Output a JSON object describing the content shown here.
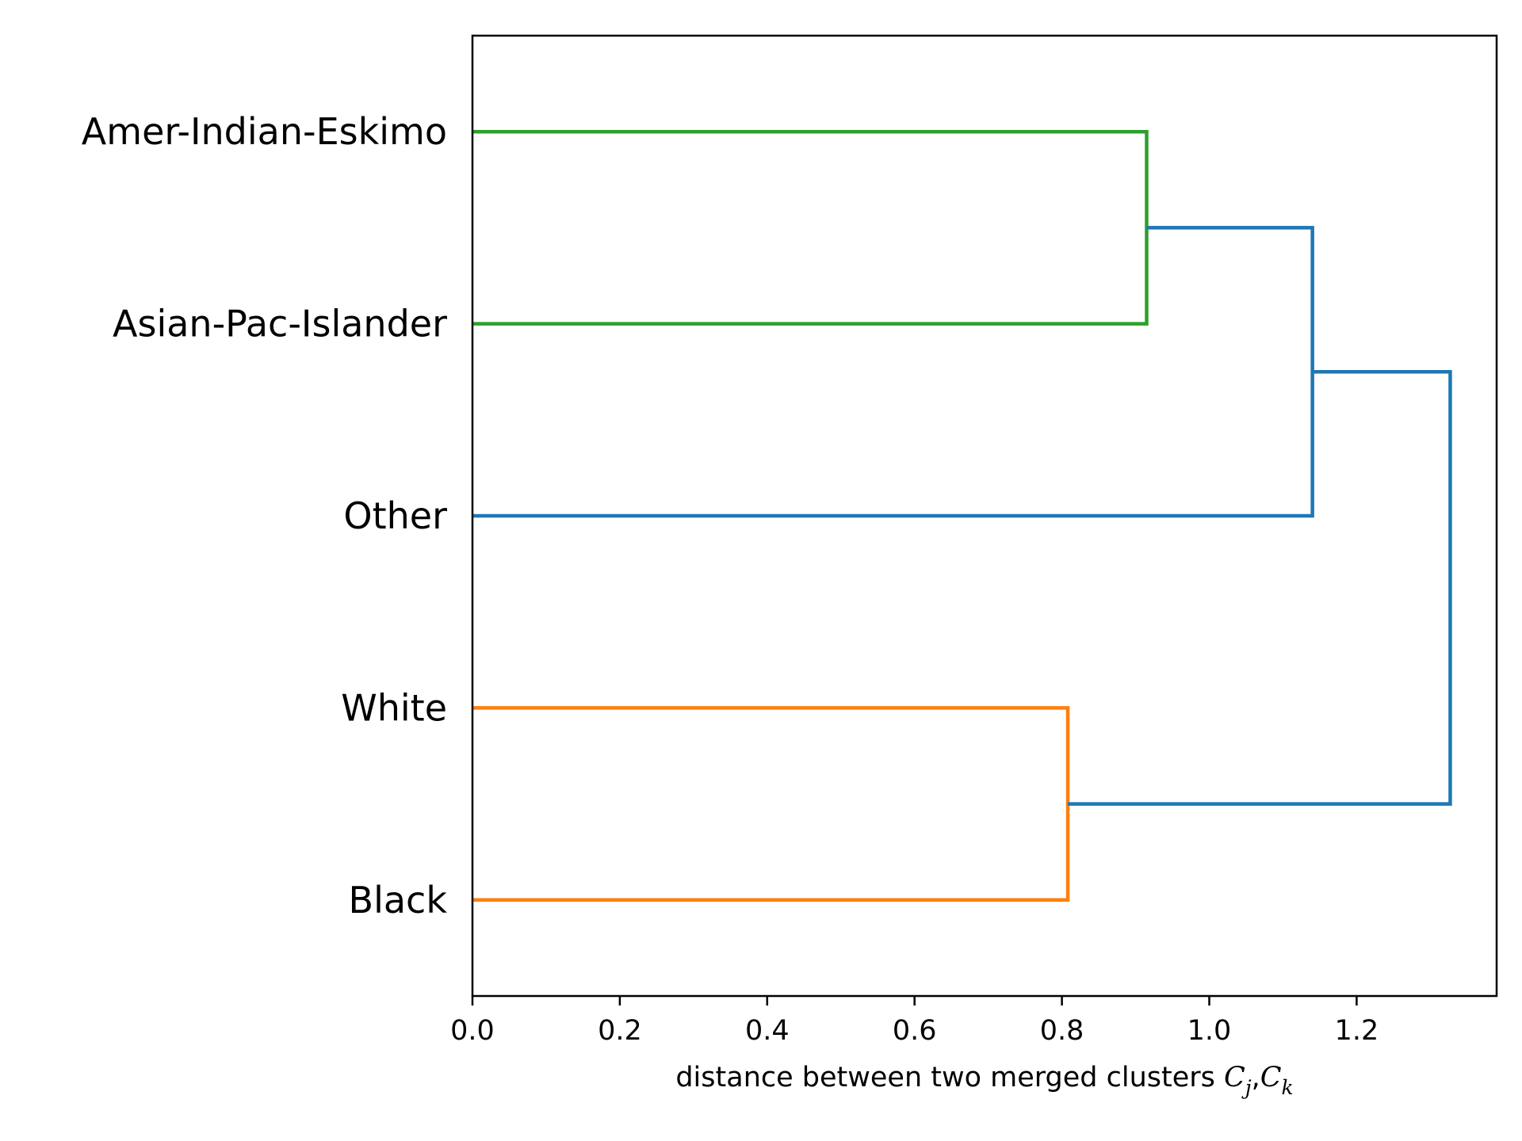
{
  "chart_data": {
    "type": "dendrogram",
    "orientation": "left",
    "xlabel_text": "distance between two merged clusters ",
    "xlabel_math": {
      "base1": "C",
      "sub1": "j",
      "sep": ",",
      "base2": "C",
      "sub2": "k"
    },
    "xlim": [
      0.0,
      1.39
    ],
    "xticks": [
      0.0,
      0.2,
      0.4,
      0.6,
      0.8,
      1.0,
      1.2
    ],
    "xtick_labels": [
      "0.0",
      "0.2",
      "0.4",
      "0.6",
      "0.8",
      "1.0",
      "1.2"
    ],
    "leaves": [
      "Amer-Indian-Eskimo",
      "Asian-Pac-Islander",
      "Other",
      "White",
      "Black"
    ],
    "merges": [
      {
        "children": [
          "Amer-Indian-Eskimo",
          "Asian-Pac-Islander"
        ],
        "distance": 0.915,
        "color": "#2ca02c"
      },
      {
        "children": [
          "White",
          "Black"
        ],
        "distance": 0.808,
        "color": "#ff7f0e"
      },
      {
        "children": [
          "merge0",
          "Other"
        ],
        "distance": 1.14,
        "color": "#1f77b4"
      },
      {
        "children": [
          "merge2",
          "merge1"
        ],
        "distance": 1.327,
        "color": "#1f77b4"
      }
    ],
    "grid": false,
    "legend": "none"
  }
}
